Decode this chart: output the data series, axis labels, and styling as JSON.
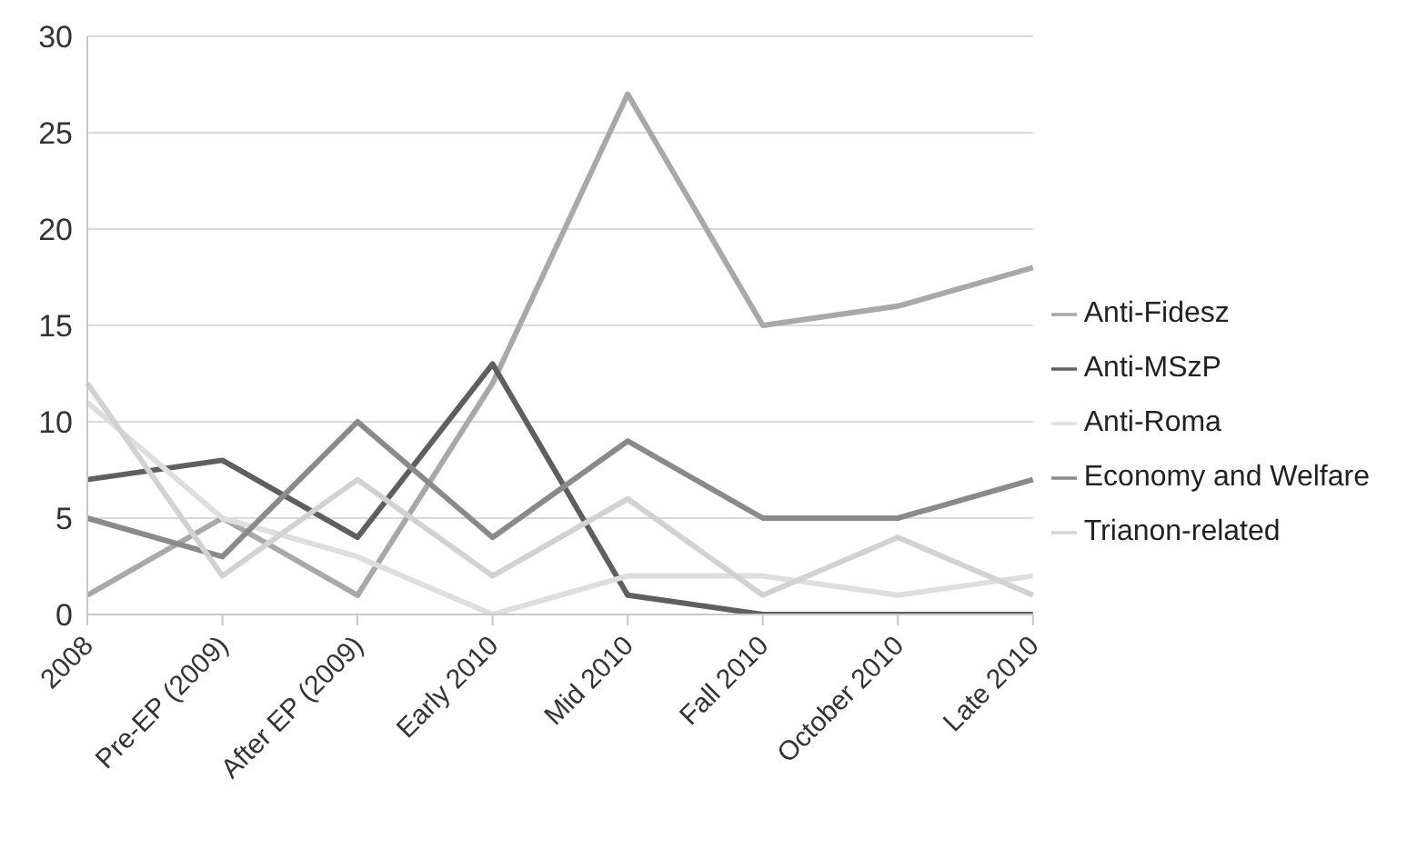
{
  "chart_data": {
    "type": "line",
    "categories": [
      "2008",
      "Pre-EP (2009)",
      "After EP (2009)",
      "Early 2010",
      "Mid 2010",
      "Fall 2010",
      "October 2010",
      "Late 2010"
    ],
    "series": [
      {
        "name": "Anti-Fidesz",
        "color": "#a8a8a8",
        "values": [
          1,
          5,
          1,
          12,
          27,
          15,
          16,
          18
        ]
      },
      {
        "name": "Anti-MSzP",
        "color": "#5f5f5f",
        "values": [
          7,
          8,
          4,
          13,
          1,
          0,
          0,
          0
        ]
      },
      {
        "name": "Anti-Roma",
        "color": "#dedede",
        "values": [
          11,
          5,
          3,
          0,
          2,
          2,
          1,
          2
        ]
      },
      {
        "name": "Economy and Welfare",
        "color": "#8a8a8a",
        "values": [
          5,
          3,
          10,
          4,
          9,
          5,
          5,
          7
        ]
      },
      {
        "name": "Trianon-related",
        "color": "#d2d2d2",
        "values": [
          12,
          2,
          7,
          2,
          6,
          1,
          4,
          1
        ]
      }
    ],
    "ylim": [
      0,
      30
    ],
    "yticks": [
      0,
      5,
      10,
      15,
      20,
      25,
      30
    ],
    "grid": "y",
    "legend": "right",
    "marker": "none",
    "line_style": "solid"
  }
}
